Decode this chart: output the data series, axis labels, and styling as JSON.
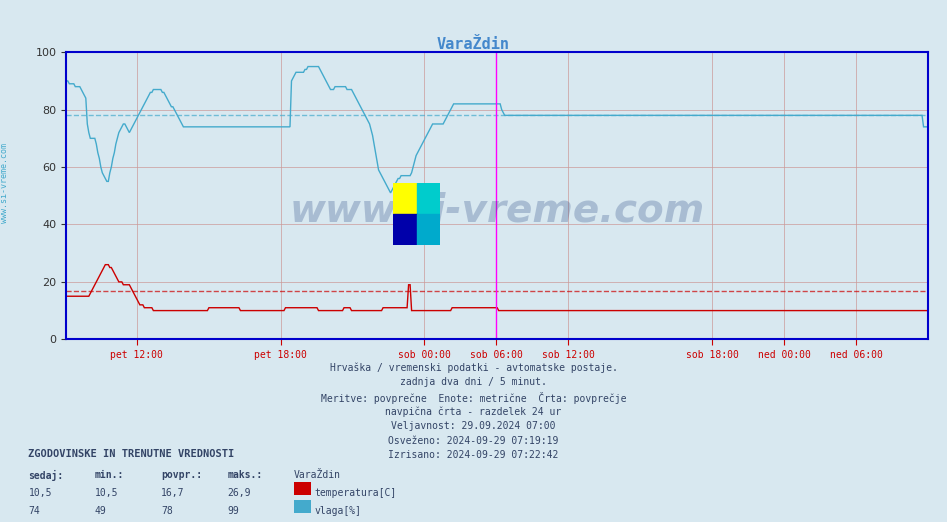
{
  "title": "VaraŽdin",
  "title_color": "#4488cc",
  "background_color": "#d8e8f0",
  "plot_bg_color": "#d8e8f0",
  "xlim": [
    0,
    575
  ],
  "ylim": [
    0,
    100
  ],
  "yticks": [
    0,
    20,
    40,
    60,
    80,
    100
  ],
  "xlabel_ticks": [
    [
      47,
      "pet 12:00"
    ],
    [
      143,
      "pet 18:00"
    ],
    [
      239,
      "sob 00:00"
    ],
    [
      287,
      "sob 06:00"
    ],
    [
      335,
      "sob 12:00"
    ],
    [
      431,
      "sob 18:00"
    ],
    [
      479,
      "ned 00:00"
    ],
    [
      527,
      "ned 06:00"
    ]
  ],
  "vlines_magenta": [
    287,
    575
  ],
  "hline_temp_avg": 16.7,
  "hline_humidity_avg": 78,
  "temp_color": "#cc0000",
  "humidity_color": "#44aacc",
  "grid_color": "#cc9999",
  "axis_color": "#0000cc",
  "tick_color": "#cc0000",
  "watermark_text": "www.si-vreme.com",
  "watermark_color": "#1a3a7a",
  "watermark_alpha": 0.25,
  "footer_lines": [
    "Hrvaška / vremenski podatki - avtomatske postaje.",
    "zadnja dva dni / 5 minut.",
    "Meritve: povprečne  Enote: metrične  Črta: povprečje",
    "navpična črta - razdelek 24 ur",
    "Veljavnost: 29.09.2024 07:00",
    "Osveženo: 2024-09-29 07:19:19",
    "Izrisano: 2024-09-29 07:22:42"
  ],
  "legend_title": "ZGODOVINSKE IN TRENUTNE VREDNOSTI",
  "legend_headers": [
    "sedaj:",
    "min.:",
    "povpr.:",
    "maks.:"
  ],
  "legend_temp_vals": [
    "10,5",
    "10,5",
    "16,7",
    "26,9"
  ],
  "legend_hum_vals": [
    "74",
    "49",
    "78",
    "99"
  ],
  "legend_station": "VaraŽdin",
  "temp_data": [
    15,
    15,
    15,
    15,
    15,
    15,
    15,
    15,
    15,
    15,
    15,
    15,
    15,
    15,
    15,
    15,
    16,
    17,
    18,
    19,
    20,
    21,
    22,
    23,
    24,
    25,
    26,
    26,
    26,
    25,
    25,
    24,
    23,
    22,
    21,
    20,
    20,
    20,
    19,
    19,
    19,
    19,
    19,
    18,
    17,
    16,
    15,
    14,
    13,
    12,
    12,
    12,
    11,
    11,
    11,
    11,
    11,
    11,
    10,
    10,
    10,
    10,
    10,
    10,
    10,
    10,
    10,
    10,
    10,
    10,
    10,
    10,
    10,
    10,
    10,
    10,
    10,
    10,
    10,
    10,
    10,
    10,
    10,
    10,
    10,
    10,
    10,
    10,
    10,
    10,
    10,
    10,
    10,
    10,
    10,
    11,
    11,
    11,
    11,
    11,
    11,
    11,
    11,
    11,
    11,
    11,
    11,
    11,
    11,
    11,
    11,
    11,
    11,
    11,
    11,
    11,
    10,
    10,
    10,
    10,
    10,
    10,
    10,
    10,
    10,
    10,
    10,
    10,
    10,
    10,
    10,
    10,
    10,
    10,
    10,
    10,
    10,
    10,
    10,
    10,
    10,
    10,
    10,
    10,
    10,
    10,
    11,
    11,
    11,
    11,
    11,
    11,
    11,
    11,
    11,
    11,
    11,
    11,
    11,
    11,
    11,
    11,
    11,
    11,
    11,
    11,
    11,
    11,
    10,
    10,
    10,
    10,
    10,
    10,
    10,
    10,
    10,
    10,
    10,
    10,
    10,
    10,
    10,
    10,
    10,
    11,
    11,
    11,
    11,
    11,
    10,
    10,
    10,
    10,
    10,
    10,
    10,
    10,
    10,
    10,
    10,
    10,
    10,
    10,
    10,
    10,
    10,
    10,
    10,
    10,
    10,
    11,
    11,
    11,
    11,
    11,
    11,
    11,
    11,
    11,
    11,
    11,
    11,
    11,
    11,
    11,
    11,
    11,
    19,
    19,
    10,
    10,
    10,
    10,
    10,
    10,
    10,
    10,
    10,
    10,
    10,
    10,
    10,
    10,
    10,
    10,
    10,
    10,
    10,
    10,
    10,
    10,
    10,
    10,
    10,
    10,
    10,
    11,
    11,
    11,
    11,
    11,
    11,
    11,
    11,
    11,
    11,
    11,
    11,
    11,
    11,
    11,
    11,
    11,
    11,
    11,
    11,
    11,
    11,
    11,
    11,
    11,
    11,
    11,
    11,
    11,
    11,
    11,
    10,
    10,
    10,
    10,
    10,
    10,
    10,
    10,
    10,
    10,
    10,
    10,
    10,
    10,
    10,
    10,
    10,
    10,
    10,
    10,
    10,
    10,
    10,
    10,
    10,
    10,
    10,
    10,
    10,
    10,
    10,
    10,
    10,
    10,
    10,
    10,
    10,
    10,
    10,
    10,
    10,
    10,
    10,
    10,
    10,
    10,
    10,
    10,
    10,
    10,
    10,
    10,
    10,
    10,
    10,
    10,
    10,
    10,
    10,
    10,
    10,
    10,
    10,
    10,
    10,
    10,
    10,
    10,
    10,
    10,
    10,
    10,
    10,
    10,
    10,
    10,
    10,
    10,
    10,
    10,
    10,
    10,
    10,
    10,
    10,
    10,
    10,
    10,
    10,
    10,
    10,
    10,
    10,
    10,
    10,
    10,
    10,
    10,
    10,
    10,
    10,
    10,
    10,
    10,
    10,
    10,
    10,
    10,
    10,
    10,
    10,
    10,
    10,
    10,
    10,
    10,
    10,
    10,
    10,
    10,
    10,
    10,
    10,
    10,
    10,
    10,
    10,
    10,
    10,
    10,
    10,
    10,
    10,
    10,
    10,
    10,
    10,
    10,
    10,
    10,
    10,
    10,
    10,
    10,
    10,
    10,
    10,
    10,
    10,
    10,
    10,
    10,
    10,
    10,
    10,
    10,
    10,
    10,
    10,
    10,
    10,
    10,
    10,
    10,
    10,
    10,
    10,
    10,
    10,
    10,
    10,
    10,
    10,
    10,
    10,
    10,
    10,
    10,
    10,
    10,
    10,
    10,
    10,
    10,
    10,
    10,
    10,
    10,
    10,
    10,
    10,
    10,
    10,
    10,
    10,
    10,
    10,
    10,
    10,
    10,
    10,
    10,
    10,
    10,
    10,
    10,
    10,
    10,
    10,
    10,
    10,
    10,
    10,
    10,
    10,
    10,
    10,
    10,
    10,
    10,
    10,
    10,
    10,
    10,
    10,
    10,
    10,
    10,
    10,
    10,
    10,
    10,
    10,
    10,
    10,
    10,
    10,
    10,
    10,
    10,
    10,
    10,
    10,
    10,
    10,
    10,
    10,
    10,
    10,
    10,
    10,
    10,
    10,
    10,
    10,
    10,
    10,
    10,
    10,
    10,
    10,
    10,
    10,
    10,
    10,
    10,
    10,
    10,
    10,
    10,
    10,
    10,
    10,
    10,
    10,
    10,
    10,
    10,
    10,
    10,
    10,
    10,
    10,
    10,
    10,
    10,
    10
  ],
  "humidity_data": [
    90,
    90,
    89,
    89,
    89,
    89,
    88,
    88,
    88,
    88,
    87,
    86,
    85,
    84,
    75,
    72,
    70,
    70,
    70,
    70,
    68,
    65,
    63,
    60,
    58,
    57,
    56,
    55,
    55,
    58,
    60,
    63,
    65,
    68,
    70,
    72,
    73,
    74,
    75,
    75,
    74,
    73,
    72,
    73,
    74,
    75,
    76,
    77,
    78,
    79,
    80,
    81,
    82,
    83,
    84,
    85,
    86,
    86,
    87,
    87,
    87,
    87,
    87,
    87,
    86,
    86,
    85,
    84,
    83,
    82,
    81,
    81,
    80,
    79,
    78,
    77,
    76,
    75,
    74,
    74,
    74,
    74,
    74,
    74,
    74,
    74,
    74,
    74,
    74,
    74,
    74,
    74,
    74,
    74,
    74,
    74,
    74,
    74,
    74,
    74,
    74,
    74,
    74,
    74,
    74,
    74,
    74,
    74,
    74,
    74,
    74,
    74,
    74,
    74,
    74,
    74,
    74,
    74,
    74,
    74,
    74,
    74,
    74,
    74,
    74,
    74,
    74,
    74,
    74,
    74,
    74,
    74,
    74,
    74,
    74,
    74,
    74,
    74,
    74,
    74,
    74,
    74,
    74,
    74,
    74,
    74,
    74,
    74,
    74,
    74,
    90,
    91,
    92,
    93,
    93,
    93,
    93,
    93,
    93,
    94,
    94,
    95,
    95,
    95,
    95,
    95,
    95,
    95,
    95,
    94,
    93,
    92,
    91,
    90,
    89,
    88,
    87,
    87,
    87,
    88,
    88,
    88,
    88,
    88,
    88,
    88,
    88,
    87,
    87,
    87,
    87,
    86,
    85,
    84,
    83,
    82,
    81,
    80,
    79,
    78,
    77,
    76,
    75,
    73,
    71,
    68,
    65,
    62,
    59,
    58,
    57,
    56,
    55,
    54,
    53,
    52,
    51,
    52,
    53,
    54,
    55,
    56,
    56,
    57,
    57,
    57,
    57,
    57,
    57,
    57,
    58,
    60,
    62,
    64,
    65,
    66,
    67,
    68,
    69,
    70,
    71,
    72,
    73,
    74,
    75,
    75,
    75,
    75,
    75,
    75,
    75,
    75,
    76,
    77,
    78,
    79,
    80,
    81,
    82,
    82,
    82,
    82,
    82,
    82,
    82,
    82,
    82,
    82,
    82,
    82,
    82,
    82,
    82,
    82,
    82,
    82,
    82,
    82,
    82,
    82,
    82,
    82,
    82,
    82,
    82,
    82,
    82,
    82,
    82,
    82,
    80,
    79,
    78,
    78,
    78,
    78,
    78,
    78,
    78,
    78,
    78,
    78,
    78,
    78,
    78,
    78,
    78,
    78,
    78,
    78,
    78,
    78,
    78,
    78,
    78,
    78,
    78,
    78,
    78,
    78,
    78,
    78,
    78,
    78,
    78,
    78,
    78,
    78,
    78,
    78,
    78,
    78,
    78,
    78,
    78,
    78,
    78,
    78,
    78,
    78,
    78,
    78,
    78,
    78,
    78,
    78,
    78,
    78,
    78,
    78,
    78,
    78,
    78,
    78,
    78,
    78,
    78,
    78,
    78,
    78,
    78,
    78,
    78,
    78,
    78,
    78,
    78,
    78,
    78,
    78,
    78,
    78,
    78,
    78,
    78,
    78,
    78,
    78,
    78,
    78,
    78,
    78,
    78,
    78,
    78,
    78,
    78,
    78,
    78,
    78,
    78,
    78,
    78,
    78,
    78,
    78,
    78,
    78,
    78,
    78,
    78,
    78,
    78,
    78,
    78,
    78,
    78,
    78,
    78,
    78,
    78,
    78,
    78,
    78,
    78,
    78,
    78,
    78,
    78,
    78,
    78,
    78,
    78,
    78,
    78,
    78,
    78,
    78,
    78,
    78,
    78,
    78,
    78,
    78,
    78,
    78,
    78,
    78,
    78,
    78,
    78,
    78,
    78,
    78,
    78,
    78,
    78,
    78,
    78,
    78,
    78,
    78,
    78,
    78,
    78,
    78,
    78,
    78,
    78,
    78,
    78,
    78,
    78,
    78,
    78,
    78,
    78,
    78,
    78,
    78,
    78,
    78,
    78,
    78,
    78,
    78,
    78,
    78,
    78,
    78,
    78,
    78,
    78,
    78,
    78,
    78,
    78,
    78,
    78,
    78,
    78,
    78,
    78,
    78,
    78,
    78,
    78,
    78,
    78,
    78,
    78,
    78,
    78,
    78,
    78,
    78,
    78,
    78,
    78,
    78,
    78,
    78,
    78,
    78,
    78,
    78,
    78,
    78,
    78,
    78,
    78,
    78,
    78,
    78,
    78,
    78,
    78,
    78,
    78,
    78,
    78,
    78,
    78,
    78,
    78,
    78,
    78,
    78,
    78,
    78,
    78,
    78,
    78,
    78,
    78,
    78,
    78,
    78,
    78,
    78,
    78,
    78,
    78,
    78,
    78,
    78,
    78,
    78,
    78,
    78,
    78,
    78,
    78,
    78,
    78,
    78,
    78,
    78,
    78,
    78,
    78,
    74,
    74,
    74,
    74
  ]
}
